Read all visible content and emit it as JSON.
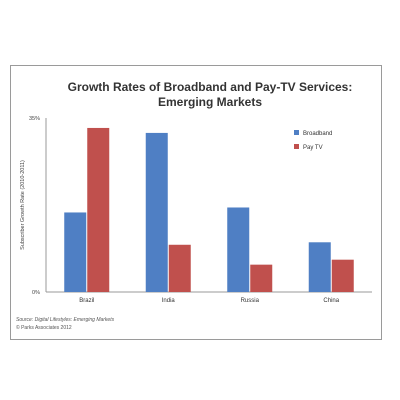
{
  "chart_data": {
    "type": "bar",
    "title": [
      "Growth Rates of Broadband and Pay-TV Services:",
      "Emerging Markets"
    ],
    "ylabel": "Subscriber Growth Rate (2010-2011)",
    "xlabel": "",
    "categories": [
      "Brazil",
      "India",
      "Russia",
      "China"
    ],
    "ylim": [
      0,
      35
    ],
    "y_ticks": [
      "0%",
      "35%"
    ],
    "series": [
      {
        "name": "Broadband",
        "values": [
          16,
          32,
          17,
          10
        ]
      },
      {
        "name": "Pay TV",
        "values": [
          33,
          9.5,
          5.5,
          6.5
        ]
      }
    ],
    "legend": "top-right",
    "grid": false
  },
  "colors": {
    "Broadband": "#4f7fc4",
    "Pay TV": "#c0504d"
  },
  "source": [
    "Source: Digital Lifestyles: Emerging Markets",
    "© Parks Associates 2012"
  ]
}
